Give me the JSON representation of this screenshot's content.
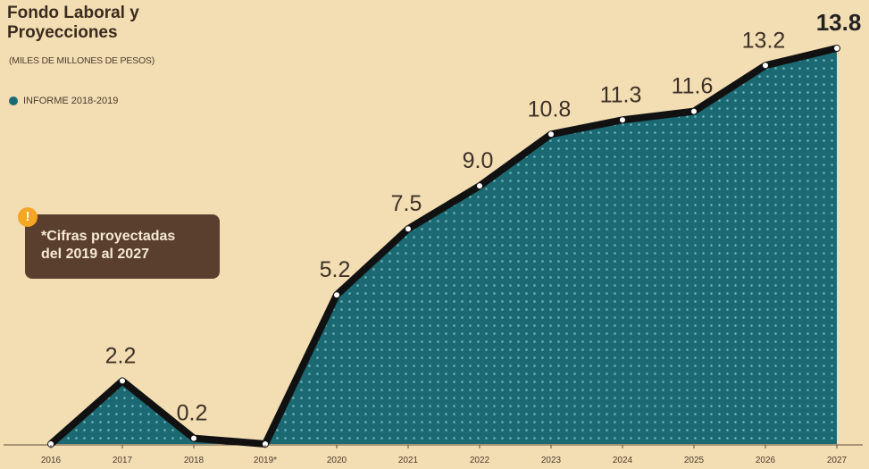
{
  "title_line1": "Fondo Laboral y",
  "title_line2": "Proyecciones",
  "subtitle": "(MILES DE MILLONES DE PESOS)",
  "legend": {
    "label": "INFORME 2018-2019",
    "color": "#1b6a73"
  },
  "note": {
    "line1": "*Cifras proyectadas",
    "line2": "del 2019 al 2027",
    "icon": "exclamation-icon"
  },
  "colors": {
    "background": "#f3deb4",
    "area": "#1b6a73",
    "line": "#111111",
    "text": "#4a3a2c"
  },
  "chart_data": {
    "type": "area",
    "categories": [
      "2016",
      "2017",
      "2018",
      "2019*",
      "2020",
      "2021",
      "2022",
      "2023",
      "2024",
      "2025",
      "2026",
      "2027"
    ],
    "series": [
      {
        "name": "INFORME 2018-2019",
        "values": [
          0,
          2.2,
          0.2,
          0,
          5.2,
          7.5,
          9.0,
          10.8,
          11.3,
          11.6,
          13.2,
          13.8
        ]
      }
    ],
    "data_labels": [
      "",
      "2.2",
      "0.2",
      "",
      "5.2",
      "7.5",
      "9.0",
      "10.8",
      "11.3",
      "11.6",
      "13.2",
      "13.8"
    ],
    "ylim": [
      0,
      14
    ],
    "grid": false
  }
}
